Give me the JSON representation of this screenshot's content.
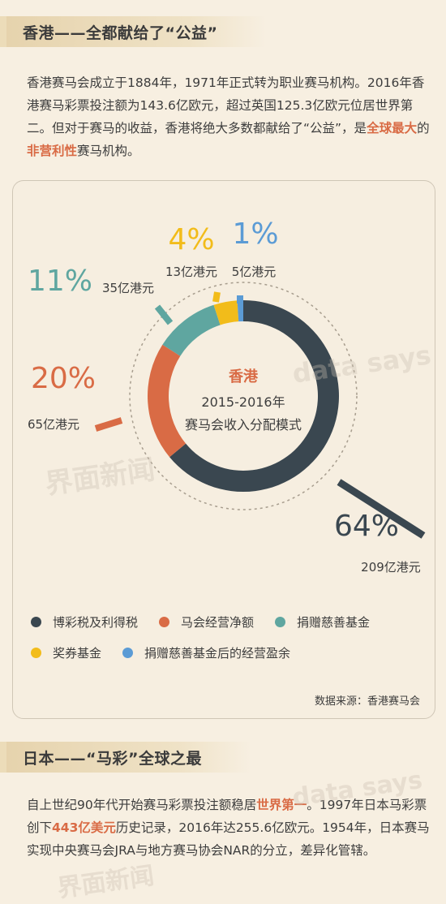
{
  "section1": {
    "title": "香港——全都献给了“公益”",
    "para": {
      "part1": "香港赛马会成立于1884年，1971年正式转为职业赛马机构。2016年香港赛马彩票投注额为143.6亿欧元，超过英国125.3亿欧元位居世界第二。但对于赛马的收益，香港将绝大多数都献给了“公益”，是",
      "hl1": "全球最大",
      "part2": "的",
      "hl2": "非营利性",
      "part3": "赛马机构。"
    }
  },
  "chart_data": {
    "type": "pie",
    "style": "donut",
    "center_title": "香港",
    "center_line1": "2015-2016年",
    "center_line2": "赛马会收入分配模式",
    "series": [
      {
        "name": "博彩税及利得税",
        "percent": 64,
        "label_pct": "64%",
        "amount_label": "209亿港元",
        "color": "#3a4750"
      },
      {
        "name": "马会经营净额",
        "percent": 20,
        "label_pct": "20%",
        "amount_label": "65亿港元",
        "color": "#d96b45"
      },
      {
        "name": "捐赠慈善基金",
        "percent": 11,
        "label_pct": "11%",
        "amount_label": "35亿港元",
        "color": "#5fa6a0"
      },
      {
        "name": "奖券基金",
        "percent": 4,
        "label_pct": "4%",
        "amount_label": "13亿港元",
        "color": "#f2bc1a"
      },
      {
        "name": "捐赠慈善基金后的经营盈余",
        "percent": 1,
        "label_pct": "1%",
        "amount_label": "5亿港元",
        "color": "#5b9bd5"
      }
    ],
    "legend_placement": "bottom"
  },
  "source": "数据来源：香港赛马会",
  "section2": {
    "title": "日本——“马彩”全球之最",
    "para": {
      "part1": "自上世纪90年代开始赛马彩票投注额稳居",
      "hl1": "世界第一",
      "part2": "。1997年日本马彩票创下",
      "hl2": "443亿美元",
      "part3": "历史记录，2016年达255.6亿欧元。1954年，日本赛马实现中央赛马会JRA与地方赛马协会NAR的分立，差异化管辖。"
    }
  },
  "watermarks": {
    "w1": "界面新闻",
    "w2": "data says"
  }
}
